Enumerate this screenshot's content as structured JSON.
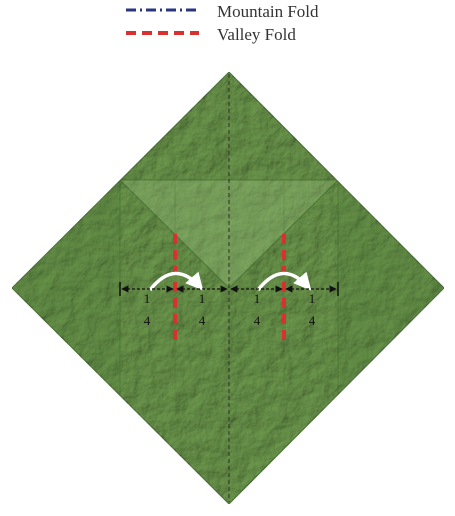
{
  "legend": {
    "mountain_label": "Mountain Fold",
    "valley_label": "Valley Fold",
    "mountain_color": "#2a3580",
    "valley_color": "#d93030"
  },
  "paper": {
    "base_color": "#6e9a4e",
    "light_color": "#8fb672",
    "dark_color": "#4f7a38",
    "edge_color": "#3f6a2c"
  },
  "fractions": [
    {
      "numerator": "1",
      "denominator": "4"
    },
    {
      "numerator": "1",
      "denominator": "4"
    },
    {
      "numerator": "1",
      "denominator": "4"
    },
    {
      "numerator": "1",
      "denominator": "4"
    }
  ],
  "icons": {
    "fold_arrow_left": "curved-fold-arrow-icon",
    "fold_arrow_right": "curved-fold-arrow-icon",
    "dimension_arrows": "double-headed-arrow-icon"
  }
}
